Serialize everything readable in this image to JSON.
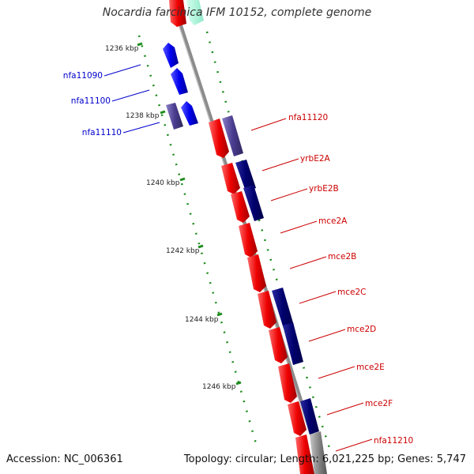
{
  "title": "Nocardia farcinica IFM 10152, complete genome",
  "footer": {
    "accession_label": "Accession: NC_006361",
    "topology_label": "Topology: circular; Length: 6,021,225 bp; Genes: 5,747"
  },
  "colors": {
    "forward_gene": "#ff0000",
    "reverse_gene": "#0000ff",
    "dark_reverse_gene": "#00007a",
    "purple_gene": "#4a3d8f",
    "gray_gene": "#8a8a8a",
    "teal_gene": "#9ff0d6",
    "label_red": "#cc0000",
    "label_blue": "#0000cc",
    "backbone": "#8c8c8c",
    "tick_green": "#1e8c1e"
  },
  "ruler_labels": [
    "1236 kbp",
    "1238 kbp",
    "1240 kbp",
    "1242 kbp",
    "1244 kbp",
    "1246 kbp"
  ],
  "genes_left": [
    {
      "name": "nfa11090",
      "color": "blue"
    },
    {
      "name": "nfa11100",
      "color": "blue"
    },
    {
      "name": "nfa11110",
      "color": "blue"
    }
  ],
  "genes_right": [
    {
      "name": "nfa11120",
      "color": "red"
    },
    {
      "name": "yrbE2A",
      "color": "red"
    },
    {
      "name": "yrbE2B",
      "color": "red"
    },
    {
      "name": "mce2A",
      "color": "red"
    },
    {
      "name": "mce2B",
      "color": "red"
    },
    {
      "name": "mce2C",
      "color": "red"
    },
    {
      "name": "mce2D",
      "color": "red"
    },
    {
      "name": "mce2E",
      "color": "red"
    },
    {
      "name": "mce2F",
      "color": "red"
    },
    {
      "name": "nfa11210",
      "color": "red"
    }
  ]
}
